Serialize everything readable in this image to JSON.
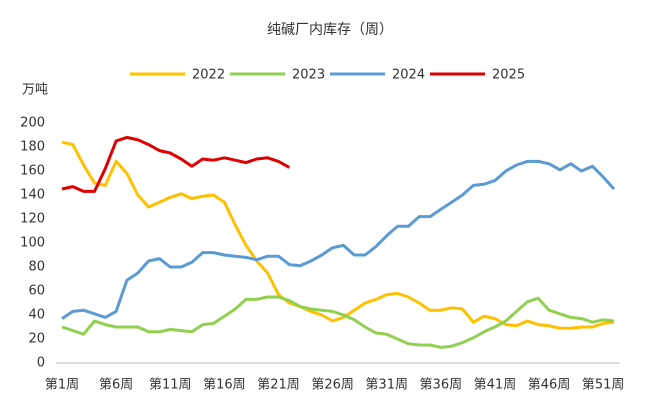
{
  "chart_data": {
    "type": "line",
    "title": "纯碱厂内库存（周）",
    "y_label": "万吨",
    "categories": [
      "第1周",
      null,
      null,
      null,
      null,
      "第6周",
      null,
      null,
      null,
      null,
      "第11周",
      null,
      null,
      null,
      null,
      "第16周",
      null,
      null,
      null,
      null,
      "第21周",
      null,
      null,
      null,
      null,
      "第26周",
      null,
      null,
      null,
      null,
      "第31周",
      null,
      null,
      null,
      null,
      "第36周",
      null,
      null,
      null,
      null,
      "第41周",
      null,
      null,
      null,
      null,
      "第46周",
      null,
      null,
      null,
      null,
      "第51周",
      null
    ],
    "series": [
      {
        "name": "2022",
        "color": "#ffc000",
        "values": [
          184,
          182,
          165,
          150,
          148,
          168,
          158,
          140,
          130,
          134,
          138,
          141,
          137,
          139,
          140,
          134,
          115,
          98,
          85,
          75,
          57,
          50,
          47,
          43,
          40,
          35,
          38,
          44,
          50,
          53,
          57,
          58,
          55,
          50,
          44,
          44,
          46,
          45,
          34,
          39,
          37,
          32,
          31,
          35,
          32,
          31,
          29,
          29,
          30,
          30,
          33,
          34
        ]
      },
      {
        "name": "2023",
        "color": "#92d050",
        "values": [
          30,
          27,
          24,
          35,
          32,
          30,
          30,
          30,
          26,
          26,
          28,
          27,
          26,
          32,
          33,
          39,
          45,
          53,
          53,
          55,
          55,
          52,
          47,
          45,
          44,
          43,
          40,
          36,
          30,
          25,
          24,
          20,
          16,
          15,
          15,
          13,
          14,
          17,
          21,
          26,
          30,
          35,
          43,
          51,
          54,
          44,
          41,
          38,
          37,
          34,
          36,
          35
        ]
      },
      {
        "name": "2024",
        "color": "#5b9bd5",
        "values": [
          37,
          43,
          44,
          41,
          38,
          43,
          69,
          75,
          85,
          87,
          80,
          80,
          84,
          92,
          92,
          90,
          89,
          88,
          86,
          89,
          89,
          82,
          81,
          85,
          90,
          96,
          98,
          90,
          90,
          97,
          106,
          114,
          114,
          122,
          122,
          128,
          134,
          140,
          148,
          149,
          152,
          160,
          165,
          168,
          168,
          166,
          161,
          166,
          160,
          164,
          155,
          145
        ]
      },
      {
        "name": "2025",
        "color": "#e00000",
        "values": [
          145,
          147,
          143,
          143,
          162,
          185,
          188,
          186,
          182,
          177,
          175,
          170,
          164,
          170,
          169,
          171,
          169,
          167,
          170,
          171,
          168,
          163,
          null,
          null,
          null,
          null,
          null,
          null,
          null,
          null,
          null,
          null,
          null,
          null,
          null,
          null,
          null,
          null,
          null,
          null,
          null,
          null,
          null,
          null,
          null,
          null,
          null,
          null,
          null,
          null,
          null,
          null
        ]
      }
    ],
    "ylim": [
      0,
      200
    ],
    "yticks": [
      0,
      20,
      40,
      60,
      80,
      100,
      120,
      140,
      160,
      180,
      200
    ],
    "grid": false
  }
}
